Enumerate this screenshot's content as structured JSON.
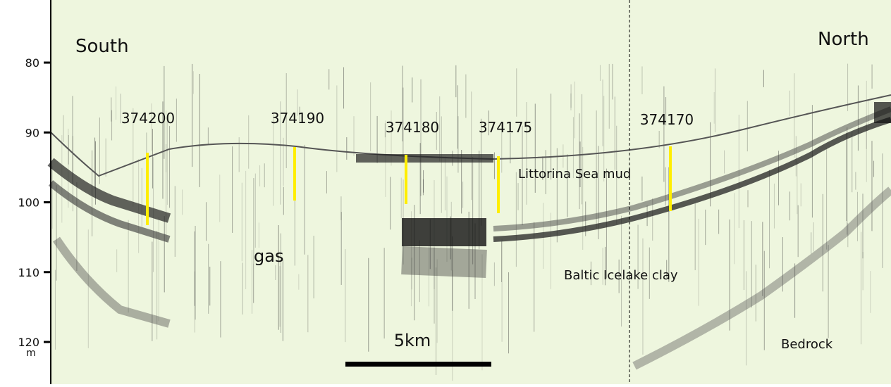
{
  "labels": {
    "south": "South",
    "north": "North",
    "gas": "gas",
    "littorina": "Littorina Sea mud",
    "baltic": "Baltic Icelake clay",
    "bedrock": "Bedrock",
    "scale_bar": "5km"
  },
  "depth_axis": {
    "ticks": [
      80,
      90,
      100,
      110,
      120
    ],
    "unit": "m"
  },
  "stations": [
    "374200",
    "374190",
    "374180",
    "374175",
    "374170"
  ]
}
